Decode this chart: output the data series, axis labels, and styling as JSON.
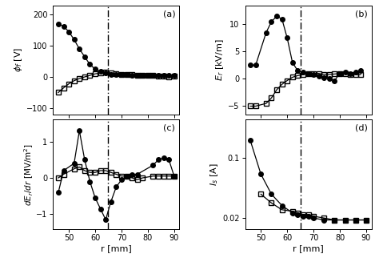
{
  "vline_x": 65,
  "r_phi_circle": [
    46,
    48,
    50,
    52,
    54,
    56,
    58,
    60,
    62,
    64,
    66,
    68,
    70,
    72,
    74,
    76,
    78,
    80,
    82,
    84,
    86,
    88,
    90
  ],
  "phi_circle": [
    170,
    163,
    145,
    120,
    90,
    65,
    40,
    25,
    18,
    12,
    8,
    7,
    7,
    7,
    6,
    6,
    5,
    6,
    5,
    5,
    5,
    5,
    5
  ],
  "r_phi_square": [
    46,
    48,
    50,
    52,
    54,
    56,
    58,
    60,
    62,
    64,
    66,
    68,
    70,
    72,
    74,
    76,
    78,
    80,
    82,
    84,
    86,
    88,
    90
  ],
  "phi_square": [
    -50,
    -35,
    -22,
    -12,
    -5,
    0,
    5,
    10,
    13,
    15,
    13,
    10,
    8,
    8,
    7,
    6,
    5,
    5,
    4,
    3,
    3,
    1,
    2
  ],
  "r_Er_circle": [
    46,
    48,
    52,
    54,
    56,
    58,
    60,
    62,
    64,
    66,
    68,
    70,
    72,
    74,
    76,
    78,
    80,
    82,
    84,
    86,
    88
  ],
  "Er_circle": [
    2.5,
    2.5,
    8.5,
    10.5,
    11.5,
    11.0,
    7.5,
    3.0,
    1.5,
    1.2,
    1.0,
    0.8,
    0.5,
    0.2,
    0.0,
    -0.3,
    1.0,
    1.3,
    1.0,
    1.2,
    1.5
  ],
  "r_Er_square": [
    46,
    48,
    52,
    54,
    56,
    58,
    60,
    62,
    64,
    66,
    68,
    70,
    72,
    74,
    76,
    78,
    80,
    82,
    84,
    86,
    88
  ],
  "Er_square": [
    -5.0,
    -5.0,
    -4.5,
    -3.5,
    -2.0,
    -1.0,
    -0.3,
    0.3,
    0.6,
    0.8,
    1.0,
    1.0,
    1.0,
    0.8,
    0.8,
    0.9,
    1.0,
    0.9,
    0.8,
    0.8,
    0.8
  ],
  "r_dEr_circle": [
    46,
    48,
    52,
    54,
    56,
    58,
    60,
    62,
    64,
    66,
    68,
    70,
    72,
    74,
    76,
    82,
    84,
    86,
    88,
    90
  ],
  "dEr_circle": [
    -0.4,
    0.2,
    0.4,
    1.3,
    0.5,
    -0.1,
    -0.55,
    -0.85,
    -1.15,
    -0.65,
    -0.25,
    -0.05,
    0.05,
    0.1,
    0.1,
    0.35,
    0.5,
    0.55,
    0.5,
    0.05
  ],
  "r_dEr_square": [
    46,
    48,
    52,
    54,
    56,
    58,
    60,
    62,
    64,
    66,
    68,
    70,
    72,
    74,
    76,
    78,
    82,
    84,
    86,
    88,
    90
  ],
  "dEr_square": [
    0.0,
    0.1,
    0.25,
    0.3,
    0.2,
    0.15,
    0.15,
    0.2,
    0.2,
    0.15,
    0.1,
    0.05,
    0.05,
    0.0,
    -0.05,
    0.0,
    0.05,
    0.05,
    0.05,
    0.05,
    0.05
  ],
  "r_Is_circle": [
    46,
    50,
    54,
    58,
    62,
    64,
    66,
    68,
    70,
    74,
    78,
    82,
    86,
    90
  ],
  "Is_circle": [
    0.16,
    0.065,
    0.038,
    0.028,
    0.023,
    0.022,
    0.021,
    0.021,
    0.02,
    0.019,
    0.019,
    0.019,
    0.019,
    0.019
  ],
  "r_Is_square": [
    50,
    54,
    58,
    62,
    64,
    66,
    68,
    70,
    74,
    78,
    82,
    86,
    90
  ],
  "Is_square": [
    0.038,
    0.03,
    0.025,
    0.024,
    0.023,
    0.022,
    0.022,
    0.021,
    0.02,
    0.019,
    0.019,
    0.019,
    0.019
  ],
  "xlim": [
    44,
    92
  ],
  "xticks": [
    50,
    60,
    70,
    80,
    90
  ],
  "phi_ylim": [
    -120,
    230
  ],
  "phi_yticks": [
    -100,
    0,
    100,
    200
  ],
  "Er_ylim": [
    -6.5,
    13.5
  ],
  "Er_yticks": [
    -5,
    0,
    5,
    10
  ],
  "dEr_ylim": [
    -1.4,
    1.6
  ],
  "dEr_yticks": [
    -1,
    0,
    1
  ],
  "Is_ylim_log": [
    0.015,
    0.28
  ],
  "label_a": "(a)",
  "label_b": "(b)",
  "label_c": "(c)",
  "label_d": "(d)",
  "xlabel": "r [mm]",
  "ylabel_a": "$\\phi_f$ [V]",
  "ylabel_b": "$E_r$ [kV/m]",
  "ylabel_c": "$dE_r/dr$ [MV/m$^2$]",
  "ylabel_d": "$I_s$ [A]"
}
